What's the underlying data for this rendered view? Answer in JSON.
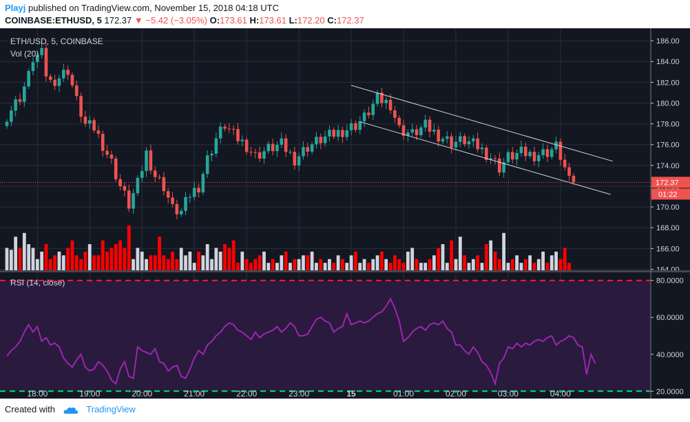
{
  "header": {
    "author": "Playj",
    "published_text": "published on TradingView.com, November 15, 2018 04:18 UTC",
    "symbol_line": "COINBASE:ETHUSD, 5",
    "last": "172.37",
    "arrow": "▼",
    "change": "−5.42 (−3.05%)",
    "o_label": "O:",
    "o": "173.61",
    "h_label": "H:",
    "h": "173.61",
    "l_label": "L:",
    "l": "172.20",
    "c_label": "C:",
    "c": "172.37"
  },
  "legend": {
    "symbol": "ETH/USD, 5, COINBASE",
    "volume": "Vol (20)",
    "rsi": "RSI (14, close)"
  },
  "price_badge": "172.37",
  "countdown_badge": "01:22",
  "footer": {
    "created": "Created with",
    "brand": "TradingView"
  },
  "colors": {
    "background": "#131722",
    "up": "#26a69a",
    "down": "#ef5350",
    "vol_up": "#d1d4dc",
    "vol_down": "#ff0000",
    "rsi_line": "#9c27b0",
    "rsi_fill": "#2a1a3d",
    "rsi_upper": "#ff1744",
    "rsi_lower": "#00e676",
    "channel": "#d1d4dc"
  },
  "chart_data": [
    {
      "type": "candlestick",
      "title": "ETH/USD, 5, COINBASE",
      "price_ticks": [
        "186.00",
        "184.00",
        "182.00",
        "180.00",
        "178.00",
        "176.00",
        "174.00",
        "172.00",
        "170.00",
        "168.00",
        "166.00",
        "164.00"
      ],
      "price_tick_values": [
        186,
        184,
        182,
        180,
        178,
        176,
        174,
        172,
        170,
        168,
        166,
        164
      ],
      "ylim": [
        163.9,
        187.2
      ],
      "x_ticks": [
        "18:00",
        "19:00",
        "20:00",
        "21:00",
        "22:00",
        "23:00",
        "15",
        "01:00",
        "02:00",
        "03:00",
        "04:00"
      ],
      "x_tick_index": [
        7,
        19,
        31,
        43,
        55,
        67,
        79,
        91,
        103,
        115,
        127
      ],
      "bar_interval_minutes": 5,
      "close_path": [
        [
          0,
          178.8
        ],
        [
          3,
          180.6
        ],
        [
          5,
          182.6
        ],
        [
          6,
          184.3
        ],
        [
          8,
          184.7
        ],
        [
          9,
          182.8
        ],
        [
          10,
          182.0
        ],
        [
          12,
          182.5
        ],
        [
          14,
          183.2
        ],
        [
          16,
          180.2
        ],
        [
          18,
          177.9
        ],
        [
          20,
          177.6
        ],
        [
          22,
          176.0
        ],
        [
          24,
          174.3
        ],
        [
          26,
          172.0
        ],
        [
          28,
          170.2
        ],
        [
          30,
          172.2
        ],
        [
          32,
          175.2
        ],
        [
          34,
          173.0
        ],
        [
          36,
          172.0
        ],
        [
          38,
          169.8
        ],
        [
          40,
          169.5
        ],
        [
          42,
          171.2
        ],
        [
          44,
          172.0
        ],
        [
          46,
          174.6
        ],
        [
          48,
          176.6
        ],
        [
          50,
          177.9
        ],
        [
          52,
          176.9
        ],
        [
          55,
          175.9
        ],
        [
          57,
          174.9
        ],
        [
          60,
          175.6
        ],
        [
          63,
          176.0
        ],
        [
          66,
          174.6
        ],
        [
          69,
          175.8
        ],
        [
          72,
          176.5
        ],
        [
          75,
          177.0
        ],
        [
          78,
          177.5
        ],
        [
          80,
          177.9
        ],
        [
          82,
          178.6
        ],
        [
          85,
          180.4
        ],
        [
          88,
          179.9
        ],
        [
          90,
          177.5
        ],
        [
          93,
          177.0
        ],
        [
          96,
          177.8
        ],
        [
          99,
          176.9
        ],
        [
          102,
          176.2
        ],
        [
          105,
          176.4
        ],
        [
          108,
          175.8
        ],
        [
          111,
          174.8
        ],
        [
          113,
          173.8
        ],
        [
          115,
          174.8
        ],
        [
          118,
          175.2
        ],
        [
          121,
          175.0
        ],
        [
          124,
          175.3
        ],
        [
          126,
          175.8
        ],
        [
          127,
          174.9
        ],
        [
          128,
          173.7
        ],
        [
          129,
          172.4
        ],
        [
          130,
          172.37
        ]
      ],
      "current_price": 172.37,
      "channel": {
        "upper": {
          "from": [
            79,
            181.7
          ],
          "to": [
            139,
            174.4
          ]
        },
        "lower": {
          "from": [
            81,
            178.2
          ],
          "to": [
            138.5,
            171.2
          ]
        }
      }
    },
    {
      "type": "bar",
      "title": "Vol (20)",
      "series": [
        {
          "values": [
            6,
            5.5,
            9,
            6,
            10,
            7,
            6,
            3,
            5,
            7,
            3,
            4,
            5,
            4,
            6,
            8,
            4,
            3,
            5,
            7,
            4,
            4,
            8,
            5,
            6,
            7,
            8,
            6,
            12,
            3,
            6,
            5,
            3,
            4,
            4,
            9,
            4,
            3,
            5,
            3,
            6,
            4,
            5,
            2,
            5,
            4,
            7,
            3,
            6,
            5,
            7,
            6,
            8,
            2,
            5,
            3,
            2,
            3,
            4,
            5,
            2,
            3,
            2,
            4,
            5,
            2,
            3,
            3,
            4,
            4,
            5,
            2,
            3,
            2,
            3,
            2,
            4,
            3,
            2,
            4,
            5,
            2,
            3,
            2,
            3,
            4,
            5,
            3,
            2,
            4,
            3,
            2,
            5,
            6,
            3,
            2,
            2,
            3,
            4,
            6,
            7,
            2,
            8,
            3,
            9,
            4,
            2,
            3,
            4,
            2,
            7,
            8,
            5,
            3,
            10,
            2,
            3,
            4,
            2,
            3,
            4,
            2,
            3,
            5,
            2,
            4,
            5,
            3,
            6,
            2
          ]
        }
      ]
    },
    {
      "type": "line",
      "title": "RSI (14, close)",
      "ylim": [
        16,
        84
      ],
      "y_ticks": [
        "80.0000",
        "60.0000",
        "40.0000",
        "20.0000"
      ],
      "y_tick_values": [
        80,
        60,
        40,
        20
      ],
      "bands": {
        "upper": 80,
        "lower": 20
      },
      "values": [
        39,
        42,
        44,
        47,
        52,
        56,
        52,
        55,
        47,
        49,
        45,
        46,
        44,
        38,
        35,
        33,
        37,
        40,
        33,
        31,
        32,
        36,
        34,
        31,
        26,
        24,
        32,
        36,
        28,
        27,
        44,
        42,
        41,
        40,
        43,
        36,
        35,
        31,
        33,
        34,
        28,
        27,
        32,
        38,
        42,
        40,
        45,
        47,
        50,
        52,
        55,
        57,
        56,
        53,
        52,
        50,
        48,
        52,
        49,
        51,
        52,
        53,
        55,
        52,
        54,
        57,
        55,
        50,
        50,
        51,
        55,
        59,
        60,
        58,
        57,
        52,
        54,
        55,
        62,
        56,
        57,
        58,
        57,
        58,
        60,
        62,
        63,
        66,
        70,
        65,
        58,
        47,
        49,
        52,
        54,
        55,
        53,
        56,
        57,
        56,
        58,
        54,
        52,
        45,
        45,
        42,
        40,
        44,
        41,
        36,
        34,
        30,
        24,
        35,
        38,
        44,
        43,
        46,
        44,
        46,
        45,
        47,
        48,
        47,
        49,
        50,
        45,
        47,
        48,
        50,
        49,
        45,
        44,
        29,
        40,
        35
      ]
    }
  ]
}
